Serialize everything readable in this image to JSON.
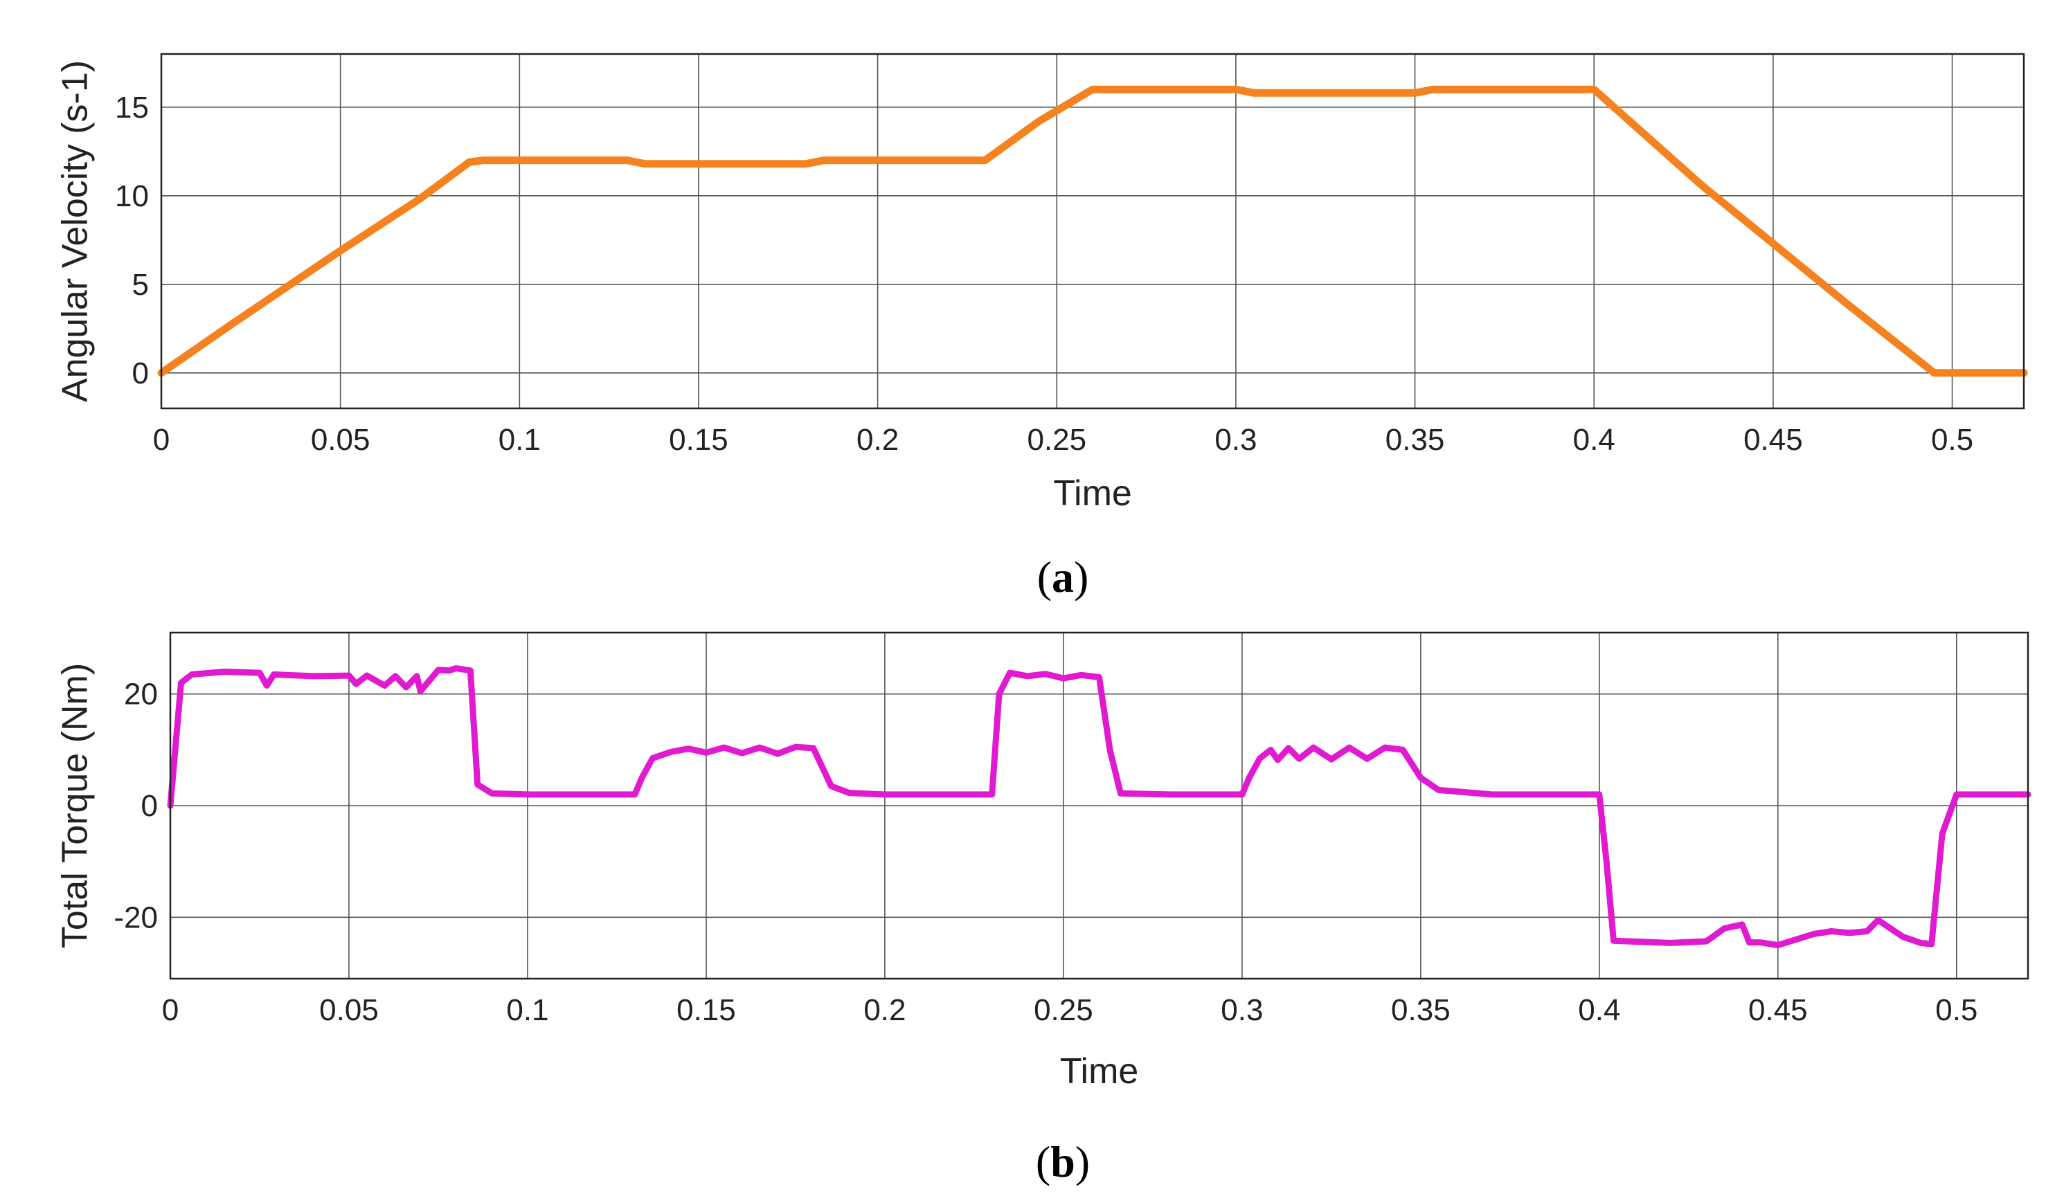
{
  "chart_data": [
    {
      "type": "line",
      "panel_label": "a",
      "xlabel": "Time",
      "ylabel": "Angular Velocity (s-1)",
      "xlim": [
        0,
        0.52
      ],
      "ylim": [
        -2,
        18
      ],
      "x_ticks": [
        0,
        0.05,
        0.1,
        0.15,
        0.2,
        0.25,
        0.3,
        0.35,
        0.4,
        0.45,
        0.5
      ],
      "x_tick_labels": [
        "0",
        "0.05",
        "0.1",
        "0.15",
        "0.2",
        "0.25",
        "0.3",
        "0.35",
        "0.4",
        "0.45",
        "0.5"
      ],
      "y_ticks": [
        0,
        5,
        10,
        15
      ],
      "y_tick_labels": [
        "0",
        "5",
        "10",
        "15"
      ],
      "grid": true,
      "series": [
        {
          "color": "#f5821f",
          "x": [
            0,
            0.02,
            0.05,
            0.072,
            0.086,
            0.09,
            0.13,
            0.135,
            0.18,
            0.185,
            0.23,
            0.245,
            0.26,
            0.3,
            0.305,
            0.35,
            0.355,
            0.4,
            0.43,
            0.45,
            0.47,
            0.495,
            0.5,
            0.52
          ],
          "y": [
            0,
            2.8,
            6.9,
            9.8,
            11.9,
            12.0,
            12.0,
            11.8,
            11.8,
            12.0,
            12.0,
            14.2,
            16.0,
            16.0,
            15.8,
            15.8,
            16.0,
            16.0,
            10.6,
            7.3,
            4.0,
            0,
            0,
            0
          ]
        }
      ]
    },
    {
      "type": "line",
      "panel_label": "b",
      "xlabel": "Time",
      "ylabel": "Total Torque (Nm)",
      "xlim": [
        0,
        0.52
      ],
      "ylim": [
        -31,
        31
      ],
      "x_ticks": [
        0,
        0.05,
        0.1,
        0.15,
        0.2,
        0.25,
        0.3,
        0.35,
        0.4,
        0.45,
        0.5
      ],
      "x_tick_labels": [
        "0",
        "0.05",
        "0.1",
        "0.15",
        "0.2",
        "0.25",
        "0.3",
        "0.35",
        "0.4",
        "0.45",
        "0.5"
      ],
      "y_ticks": [
        -20,
        0,
        20
      ],
      "y_tick_labels": [
        "-20",
        "0",
        "20"
      ],
      "grid": true,
      "series": [
        {
          "color": "#e01ad0",
          "x": [
            0,
            0.003,
            0.006,
            0.015,
            0.025,
            0.027,
            0.029,
            0.04,
            0.05,
            0.052,
            0.055,
            0.06,
            0.063,
            0.066,
            0.069,
            0.07,
            0.075,
            0.078,
            0.08,
            0.084,
            0.086,
            0.09,
            0.1,
            0.13,
            0.132,
            0.135,
            0.14,
            0.145,
            0.15,
            0.155,
            0.16,
            0.165,
            0.17,
            0.175,
            0.18,
            0.185,
            0.19,
            0.2,
            0.23,
            0.232,
            0.235,
            0.24,
            0.245,
            0.25,
            0.255,
            0.26,
            0.263,
            0.266,
            0.28,
            0.3,
            0.302,
            0.305,
            0.308,
            0.31,
            0.313,
            0.316,
            0.32,
            0.325,
            0.33,
            0.335,
            0.34,
            0.345,
            0.35,
            0.355,
            0.37,
            0.4,
            0.402,
            0.404,
            0.42,
            0.43,
            0.435,
            0.44,
            0.442,
            0.445,
            0.45,
            0.46,
            0.465,
            0.47,
            0.475,
            0.478,
            0.485,
            0.49,
            0.493,
            0.496,
            0.5,
            0.52
          ],
          "y": [
            0,
            22,
            23.5,
            24,
            23.8,
            21.5,
            23.5,
            23.2,
            23.3,
            21.8,
            23.3,
            21.5,
            23.2,
            21.2,
            23.2,
            20.5,
            24.3,
            24.2,
            24.6,
            24.2,
            3.8,
            2.2,
            2.0,
            2.0,
            5.0,
            8.5,
            9.6,
            10.2,
            9.5,
            10.4,
            9.4,
            10.4,
            9.3,
            10.5,
            10.3,
            3.5,
            2.3,
            2.0,
            2.0,
            20.0,
            23.8,
            23.2,
            23.6,
            22.8,
            23.4,
            23.0,
            10.0,
            2.2,
            2.0,
            2.0,
            5.0,
            8.5,
            10.0,
            8.2,
            10.3,
            8.4,
            10.4,
            8.3,
            10.4,
            8.4,
            10.4,
            10.0,
            5.0,
            2.8,
            2.0,
            2.0,
            -10.0,
            -24.2,
            -24.6,
            -24.3,
            -22.0,
            -21.3,
            -24.5,
            -24.5,
            -25.0,
            -23.0,
            -22.5,
            -22.8,
            -22.5,
            -20.5,
            -23.5,
            -24.6,
            -24.8,
            -5.0,
            2.0,
            2.0
          ]
        }
      ]
    }
  ]
}
